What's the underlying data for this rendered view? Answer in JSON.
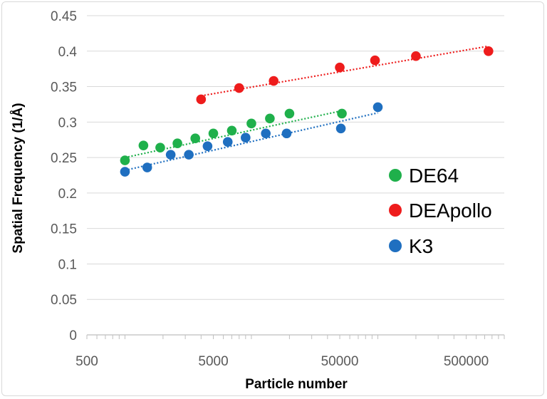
{
  "chart_data": {
    "type": "scatter",
    "xscale": "log",
    "xlabel": "Particle number",
    "ylabel": "Spatial Frequency (1/Å)",
    "xlim": [
      500,
      1000000
    ],
    "ylim": [
      0,
      0.45
    ],
    "x_ticks": [
      500,
      5000,
      50000,
      500000
    ],
    "x_tick_labels": [
      "500",
      "5000",
      "50000",
      "500000"
    ],
    "y_ticks": [
      0,
      0.05,
      0.1,
      0.15,
      0.2,
      0.25,
      0.3,
      0.35,
      0.4,
      0.45
    ],
    "y_tick_labels": [
      "0",
      "0.05",
      "0.1",
      "0.15",
      "0.2",
      "0.25",
      "0.3",
      "0.35",
      "0.4",
      "0.45"
    ],
    "grid": "horizontal",
    "legend_position": "right",
    "series": [
      {
        "name": "DE64",
        "color": "#1fb04b",
        "x": [
          1000,
          1400,
          1900,
          2600,
          3600,
          5000,
          7000,
          10000,
          14000,
          20000,
          52000
        ],
        "y": [
          0.246,
          0.267,
          0.264,
          0.27,
          0.277,
          0.284,
          0.288,
          0.298,
          0.305,
          0.312,
          0.312
        ],
        "trendline": {
          "x": [
            1000,
            52000
          ],
          "y": [
            0.25,
            0.316
          ]
        }
      },
      {
        "name": "DEApollo",
        "color": "#ee1c1c",
        "x": [
          4000,
          8000,
          15000,
          50000,
          95000,
          200000,
          750000
        ],
        "y": [
          0.332,
          0.348,
          0.358,
          0.377,
          0.387,
          0.393,
          0.4
        ],
        "trendline": {
          "x": [
            4000,
            750000
          ],
          "y": [
            0.337,
            0.407
          ]
        }
      },
      {
        "name": "K3",
        "color": "#1f6fc0",
        "x": [
          1000,
          1500,
          2300,
          3200,
          4500,
          6500,
          9000,
          13000,
          19000,
          51000,
          100000
        ],
        "y": [
          0.23,
          0.236,
          0.254,
          0.254,
          0.266,
          0.272,
          0.278,
          0.284,
          0.284,
          0.291,
          0.321
        ],
        "trendline": {
          "x": [
            1000,
            100000
          ],
          "y": [
            0.232,
            0.313
          ]
        }
      }
    ]
  }
}
